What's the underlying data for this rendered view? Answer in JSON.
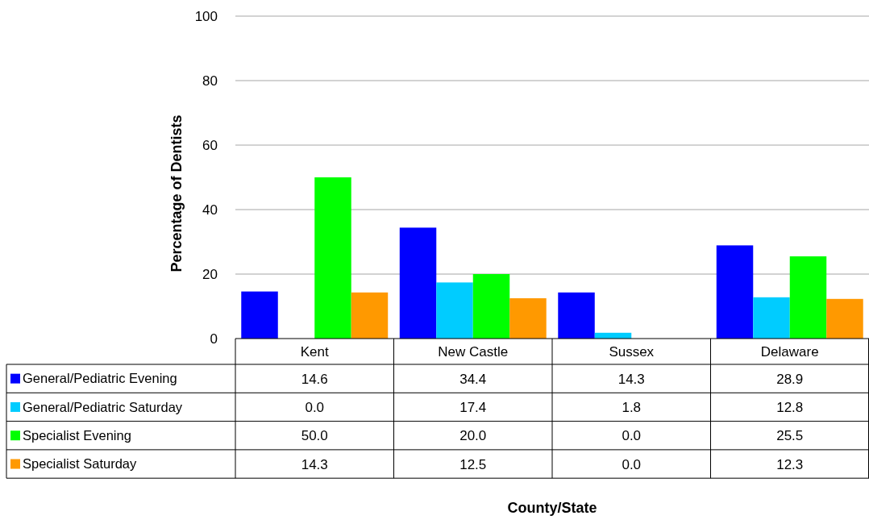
{
  "chart_data": {
    "type": "bar",
    "annotations": [
      "County/State"
    ],
    "ylabel": "Percentage of Dentists",
    "categories": [
      "Kent",
      "New Castle",
      "Sussex",
      "Delaware"
    ],
    "series": [
      {
        "name": "General/Pediatric Evening",
        "color": "#0000ff",
        "values": [
          14.6,
          34.4,
          14.3,
          28.9
        ],
        "value_labels": [
          "14.6",
          "34.4",
          "14.3",
          "28.9"
        ]
      },
      {
        "name": "General/Pediatric Saturday",
        "color": "#00ccff",
        "values": [
          0.0,
          17.4,
          1.8,
          12.8
        ],
        "value_labels": [
          "0.0",
          "17.4",
          "1.8",
          "12.8"
        ]
      },
      {
        "name": "Specialist Evening",
        "color": "#00ff00",
        "values": [
          50.0,
          20.0,
          0.0,
          25.5
        ],
        "value_labels": [
          "50.0",
          "20.0",
          "0.0",
          "25.5"
        ]
      },
      {
        "name": "Specialist Saturday",
        "color": "#ff9900",
        "values": [
          14.3,
          12.5,
          0.0,
          12.3
        ],
        "value_labels": [
          "14.3",
          "12.5",
          "0.0",
          "12.3"
        ]
      }
    ],
    "ylim": [
      0,
      100
    ],
    "yticks": [
      0,
      20,
      40,
      60,
      80,
      100
    ],
    "grid": "y",
    "legend": "bottom left"
  }
}
